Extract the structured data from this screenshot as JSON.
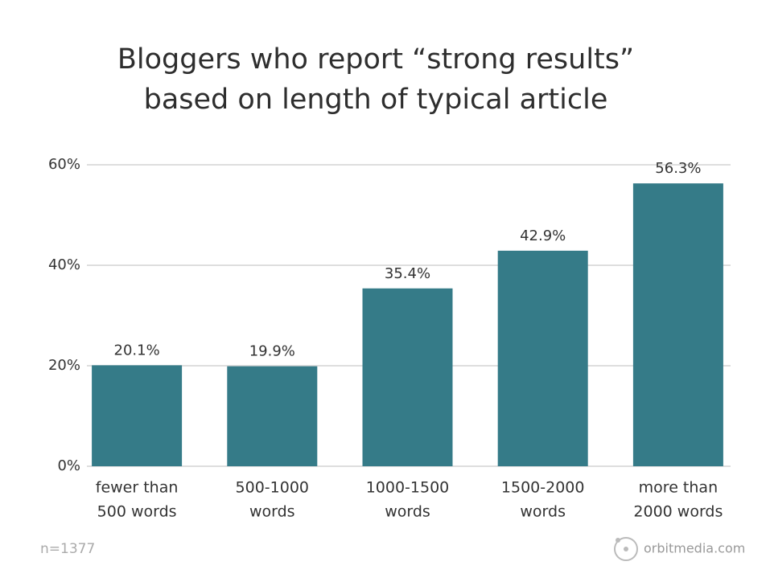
{
  "chart_data": {
    "type": "bar",
    "title": [
      "Bloggers who report “strong results”",
      "based on length of typical article"
    ],
    "categories": [
      [
        "fewer than",
        "500 words"
      ],
      [
        "500-1000",
        "words"
      ],
      [
        "1000-1500",
        "words"
      ],
      [
        "1500-2000",
        "words"
      ],
      [
        "more than",
        "2000 words"
      ]
    ],
    "values": [
      20.1,
      19.9,
      35.4,
      42.9,
      56.3
    ],
    "value_labels": [
      "20.1%",
      "19.9%",
      "35.4%",
      "42.9%",
      "56.3%"
    ],
    "color": "#357b88",
    "ylim": [
      0,
      60
    ],
    "yticks": [
      {
        "value": 0,
        "label": "0%"
      },
      {
        "value": 20,
        "label": "20%"
      },
      {
        "value": 40,
        "label": "40%"
      },
      {
        "value": 60,
        "label": "60%"
      }
    ],
    "grid": true,
    "note": "n=1377",
    "source": "orbitmedia.com"
  }
}
